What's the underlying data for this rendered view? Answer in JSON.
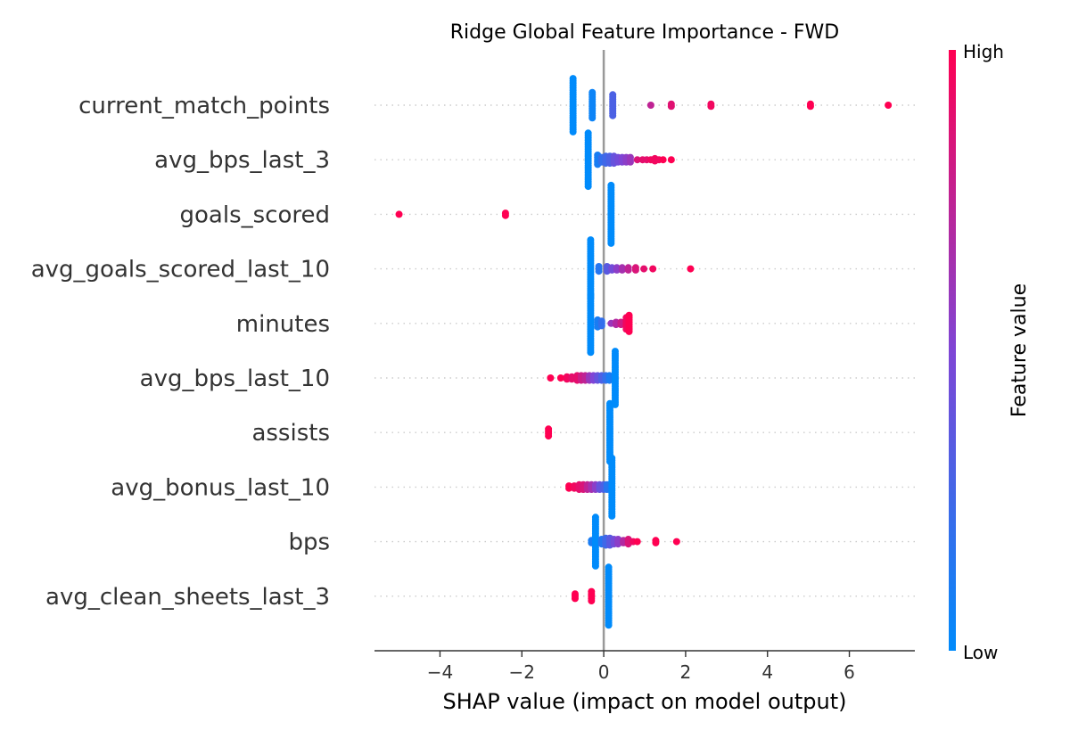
{
  "chart_data": {
    "type": "scatter",
    "subtype": "shap-beeswarm",
    "title": "Ridge Global Feature Importance - FWD",
    "xlabel": "SHAP value (impact on model output)",
    "ylabel": "",
    "xlim": [
      -5.6,
      7.6
    ],
    "xticks": [
      -4,
      -2,
      0,
      2,
      4,
      6
    ],
    "xtick_labels": [
      "−4",
      "−2",
      "0",
      "2",
      "4",
      "6"
    ],
    "grid": false,
    "colorbar": {
      "label": "Feature value",
      "high_label": "High",
      "low_label": "Low",
      "low_color": "#008bfb",
      "high_color": "#ff0052"
    },
    "colors": {
      "zero_line": "#999999",
      "dotted_row_line": "#cccccc",
      "text": "#333333"
    },
    "features": [
      {
        "name": "current_match_points",
        "points": [
          {
            "x": -0.75,
            "c": 0.0,
            "n": 24
          },
          {
            "x": -0.28,
            "c": 0.05,
            "n": 12
          },
          {
            "x": 0.22,
            "c": 0.3,
            "n": 10
          },
          {
            "x": 1.15,
            "c": 0.75,
            "n": 1
          },
          {
            "x": 1.65,
            "c": 0.88,
            "n": 2
          },
          {
            "x": 2.62,
            "c": 0.95,
            "n": 2
          },
          {
            "x": 5.05,
            "c": 1.0,
            "n": 2
          },
          {
            "x": 6.95,
            "c": 1.0,
            "n": 1
          }
        ]
      },
      {
        "name": "avg_bps_last_3",
        "points": [
          {
            "x": -0.38,
            "c": 0.0,
            "n": 24
          },
          {
            "x": -0.15,
            "c": 0.1,
            "n": 5
          },
          {
            "x": -0.05,
            "c": 0.2,
            "n": 3
          },
          {
            "x": 0.05,
            "c": 0.25,
            "n": 4
          },
          {
            "x": 0.15,
            "c": 0.3,
            "n": 4
          },
          {
            "x": 0.25,
            "c": 0.4,
            "n": 4
          },
          {
            "x": 0.35,
            "c": 0.45,
            "n": 3
          },
          {
            "x": 0.45,
            "c": 0.5,
            "n": 3
          },
          {
            "x": 0.55,
            "c": 0.55,
            "n": 3
          },
          {
            "x": 0.65,
            "c": 0.6,
            "n": 3
          },
          {
            "x": 0.82,
            "c": 0.85,
            "n": 1
          },
          {
            "x": 0.95,
            "c": 0.9,
            "n": 1
          },
          {
            "x": 1.05,
            "c": 0.9,
            "n": 1
          },
          {
            "x": 1.15,
            "c": 0.95,
            "n": 1
          },
          {
            "x": 1.25,
            "c": 0.95,
            "n": 2
          },
          {
            "x": 1.35,
            "c": 0.95,
            "n": 1
          },
          {
            "x": 1.45,
            "c": 1.0,
            "n": 1
          },
          {
            "x": 1.65,
            "c": 1.0,
            "n": 1
          }
        ]
      },
      {
        "name": "goals_scored",
        "points": [
          {
            "x": -5.0,
            "c": 1.0,
            "n": 1
          },
          {
            "x": -2.4,
            "c": 1.0,
            "n": 2
          },
          {
            "x": 0.18,
            "c": 0.0,
            "n": 26
          }
        ]
      },
      {
        "name": "avg_goals_scored_last_10",
        "points": [
          {
            "x": -0.32,
            "c": 0.0,
            "n": 26
          },
          {
            "x": -0.12,
            "c": 0.15,
            "n": 3
          },
          {
            "x": 0.08,
            "c": 0.35,
            "n": 3
          },
          {
            "x": 0.2,
            "c": 0.45,
            "n": 2
          },
          {
            "x": 0.32,
            "c": 0.55,
            "n": 2
          },
          {
            "x": 0.45,
            "c": 0.65,
            "n": 2
          },
          {
            "x": 0.6,
            "c": 0.75,
            "n": 2
          },
          {
            "x": 0.78,
            "c": 0.85,
            "n": 2
          },
          {
            "x": 0.98,
            "c": 0.9,
            "n": 1
          },
          {
            "x": 1.2,
            "c": 0.95,
            "n": 1
          },
          {
            "x": 2.12,
            "c": 1.0,
            "n": 1
          }
        ]
      },
      {
        "name": "minutes",
        "points": [
          {
            "x": -0.32,
            "c": 0.0,
            "n": 26
          },
          {
            "x": -0.15,
            "c": 0.1,
            "n": 4
          },
          {
            "x": -0.05,
            "c": 0.2,
            "n": 3
          },
          {
            "x": 0.18,
            "c": 0.6,
            "n": 1
          },
          {
            "x": 0.3,
            "c": 0.7,
            "n": 2
          },
          {
            "x": 0.42,
            "c": 0.8,
            "n": 2
          },
          {
            "x": 0.55,
            "c": 0.95,
            "n": 6
          },
          {
            "x": 0.62,
            "c": 1.0,
            "n": 8
          }
        ]
      },
      {
        "name": "avg_bps_last_10",
        "points": [
          {
            "x": -1.3,
            "c": 1.0,
            "n": 1
          },
          {
            "x": -1.05,
            "c": 1.0,
            "n": 1
          },
          {
            "x": -0.9,
            "c": 0.95,
            "n": 2
          },
          {
            "x": -0.78,
            "c": 0.9,
            "n": 2
          },
          {
            "x": -0.65,
            "c": 0.9,
            "n": 3
          },
          {
            "x": -0.55,
            "c": 0.8,
            "n": 3
          },
          {
            "x": -0.45,
            "c": 0.75,
            "n": 3
          },
          {
            "x": -0.35,
            "c": 0.6,
            "n": 3
          },
          {
            "x": -0.25,
            "c": 0.5,
            "n": 3
          },
          {
            "x": -0.15,
            "c": 0.4,
            "n": 3
          },
          {
            "x": -0.05,
            "c": 0.3,
            "n": 3
          },
          {
            "x": 0.05,
            "c": 0.2,
            "n": 3
          },
          {
            "x": 0.14,
            "c": 0.1,
            "n": 3
          },
          {
            "x": 0.28,
            "c": 0.0,
            "n": 24
          }
        ]
      },
      {
        "name": "assists",
        "points": [
          {
            "x": -1.35,
            "c": 1.0,
            "n": 4
          },
          {
            "x": 0.15,
            "c": 0.0,
            "n": 26
          }
        ]
      },
      {
        "name": "avg_bonus_last_10",
        "points": [
          {
            "x": -0.85,
            "c": 1.0,
            "n": 2
          },
          {
            "x": -0.72,
            "c": 0.95,
            "n": 2
          },
          {
            "x": -0.6,
            "c": 0.9,
            "n": 3
          },
          {
            "x": -0.5,
            "c": 0.85,
            "n": 3
          },
          {
            "x": -0.4,
            "c": 0.75,
            "n": 3
          },
          {
            "x": -0.3,
            "c": 0.65,
            "n": 3
          },
          {
            "x": -0.2,
            "c": 0.55,
            "n": 3
          },
          {
            "x": -0.1,
            "c": 0.4,
            "n": 3
          },
          {
            "x": 0.0,
            "c": 0.3,
            "n": 3
          },
          {
            "x": 0.08,
            "c": 0.15,
            "n": 3
          },
          {
            "x": 0.2,
            "c": 0.0,
            "n": 26
          }
        ]
      },
      {
        "name": "bps",
        "points": [
          {
            "x": -0.3,
            "c": 0.1,
            "n": 2
          },
          {
            "x": -0.2,
            "c": 0.0,
            "n": 22
          },
          {
            "x": -0.05,
            "c": 0.15,
            "n": 3
          },
          {
            "x": 0.05,
            "c": 0.25,
            "n": 4
          },
          {
            "x": 0.15,
            "c": 0.35,
            "n": 4
          },
          {
            "x": 0.25,
            "c": 0.45,
            "n": 3
          },
          {
            "x": 0.35,
            "c": 0.55,
            "n": 3
          },
          {
            "x": 0.48,
            "c": 0.7,
            "n": 2
          },
          {
            "x": 0.6,
            "c": 0.85,
            "n": 3
          },
          {
            "x": 0.72,
            "c": 0.95,
            "n": 1
          },
          {
            "x": 0.82,
            "c": 1.0,
            "n": 1
          },
          {
            "x": 1.27,
            "c": 1.0,
            "n": 2
          },
          {
            "x": 1.78,
            "c": 1.0,
            "n": 1
          }
        ]
      },
      {
        "name": "avg_clean_sheets_last_3",
        "points": [
          {
            "x": -0.7,
            "c": 1.0,
            "n": 3
          },
          {
            "x": -0.3,
            "c": 1.0,
            "n": 5
          },
          {
            "x": 0.12,
            "c": 0.0,
            "n": 26
          }
        ]
      }
    ]
  }
}
